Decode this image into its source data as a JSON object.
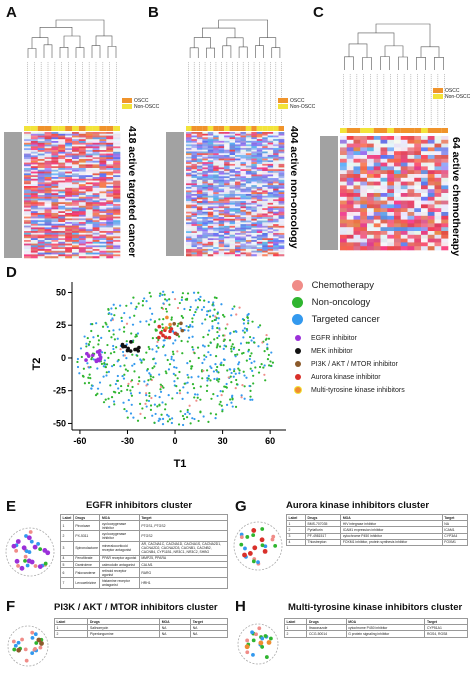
{
  "panels": {
    "A": {
      "letter": "A",
      "title": "418 active targeted cancer"
    },
    "B": {
      "letter": "B",
      "title": "404 active non-oncology"
    },
    "C": {
      "letter": "C",
      "title": "64 active chemotherapy"
    },
    "D": {
      "letter": "D"
    },
    "E": {
      "letter": "E"
    },
    "F": {
      "letter": "F"
    },
    "G": {
      "letter": "G"
    },
    "H": {
      "letter": "H"
    }
  },
  "heatmap_legend": {
    "oscc": "OSCC",
    "non_oscc": "Non-OSCC"
  },
  "colors": {
    "oscc": "#f0932b",
    "non_oscc": "#f2e33a",
    "chemotherapy": "#f08c88",
    "non_oncology": "#2fb52f",
    "targeted_cancer": "#3399ee",
    "egfr": "#9b30d9",
    "mek": "#111111",
    "pi3k": "#8b5a2b",
    "aurora": "#d9302a",
    "mtki": "#f08c30"
  },
  "chart_data": {
    "type": "scatter",
    "xlabel": "T1",
    "ylabel": "T2",
    "xticks": [
      -60,
      -30,
      0,
      30,
      60
    ],
    "yticks": [
      50,
      25,
      0,
      -25,
      -50
    ],
    "xlim": [
      -65,
      70
    ],
    "ylim": [
      -55,
      58
    ],
    "legend_placement": "right",
    "series": [
      {
        "name": "Chemotherapy",
        "color": "#f08c88"
      },
      {
        "name": "Non-oncology",
        "color": "#2fb52f"
      },
      {
        "name": "Targeted cancer",
        "color": "#3399ee"
      },
      {
        "name": "EGFR inhibitor",
        "color": "#9b30d9"
      },
      {
        "name": "MEK inhibitor",
        "color": "#111111"
      },
      {
        "name": "PI3K / AKT / MTOR inhibitor",
        "color": "#8b5a2b"
      },
      {
        "name": "Aurora kinase inhibitor",
        "color": "#d9302a"
      },
      {
        "name": "Multi-tyrosine kinase inhibitors",
        "color": "#f08c30"
      }
    ]
  },
  "clusters": {
    "E": {
      "title": "EGFR inhibitors cluster",
      "headers": [
        "Label",
        "Drugs",
        "MOA",
        "Target"
      ],
      "rows": [
        [
          "1",
          "Piroxicam",
          "cyclooxygenase inhibitor",
          "PTGS1, PTGS2"
        ],
        [
          "2",
          "PX-5311",
          "cyclooxygenase inhibitor",
          "PTGS2"
        ],
        [
          "3",
          "Spironolactone",
          "mineralocorticoid receptor antagonist",
          "AR, CACNA1C, CACNA1D, CACNA1S, CACNA2D1, CACNA2D2, CACNA2D3, CACNB1, CACNB2, CACNB4, CYP11B1, NR3C1, NR3C2, SHBG"
        ],
        [
          "4",
          "Fenofibrate",
          "PPAR receptor agonist",
          "MMP25, PPARA"
        ],
        [
          "5",
          "Dantrolene",
          "calmodulin antagonist",
          "CALM1"
        ],
        [
          "6",
          "Palovarotene",
          "retinoid receptor agonist",
          "RARG"
        ],
        [
          "7",
          "Levocetirizine",
          "histamine receptor antagonist",
          "HRH1"
        ]
      ]
    },
    "F": {
      "title": "PI3K / AKT / MTOR inhibitors cluster",
      "headers": [
        "Label",
        "Drugs",
        "MOA",
        "Target"
      ],
      "rows": [
        [
          "1",
          "Salinomycin",
          "NA",
          "NA"
        ],
        [
          "2",
          "Piperlongumine",
          "NA",
          "NA"
        ]
      ]
    },
    "G": {
      "title": "Aurora kinase inhibitors cluster",
      "headers": [
        "Label",
        "Drugs",
        "MOA",
        "Target"
      ],
      "rows": [
        [
          "1",
          "BMS-707035",
          "HIV integrase inhibitor",
          "NA"
        ],
        [
          "2",
          "Pyrlaflurin",
          "ICAM1 expression inhibitor",
          "ICAM1"
        ],
        [
          "3",
          "PF-4981517",
          "cytochrome P450 inhibitor",
          "CYP3A4"
        ],
        [
          "4",
          "Thiostrepton",
          "FOXM1 inhibitor, protein synthesis inhibitor",
          "FOXM1"
        ]
      ]
    },
    "H": {
      "title": "Multi-tyrosine kinase inhibitors cluster",
      "headers": [
        "Label",
        "Drugs",
        "MOA",
        "Target"
      ],
      "rows": [
        [
          "1",
          "Itraconazole",
          "cytochrome P450 inhibitor",
          "CYP51A1"
        ],
        [
          "2",
          "CCG-50014",
          "G protein signaling inhibitor",
          "RGS4, RGS8"
        ]
      ]
    }
  }
}
